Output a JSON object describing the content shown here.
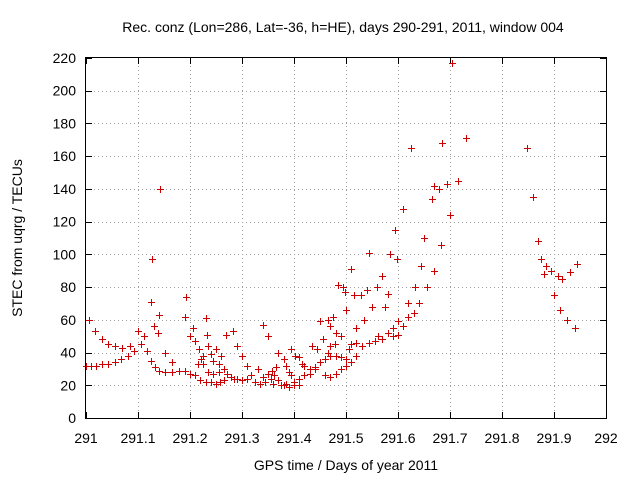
{
  "chart_data": {
    "type": "scatter",
    "title": "Rec. conz (Lon=286, Lat=-36, h=HE), days 290-291, 2011, window 004",
    "xlabel": "GPS time / Days of year 2011",
    "ylabel": "STEC from uqrg / TECUs",
    "xlim": [
      291,
      292
    ],
    "ylim": [
      0,
      220
    ],
    "x_ticks": [
      "291",
      "291.1",
      "291.2",
      "291.3",
      "291.4",
      "291.5",
      "291.6",
      "291.7",
      "291.8",
      "291.9",
      "292"
    ],
    "y_ticks": [
      "0",
      "20",
      "40",
      "60",
      "80",
      "100",
      "120",
      "140",
      "160",
      "180",
      "200",
      "220"
    ],
    "grid": true,
    "marker": "+",
    "color": "#cc0000",
    "points": [
      [
        291.0,
        32
      ],
      [
        291.01,
        32
      ],
      [
        291.02,
        32
      ],
      [
        291.03,
        33
      ],
      [
        291.042,
        33
      ],
      [
        291.055,
        34
      ],
      [
        291.068,
        36
      ],
      [
        291.08,
        38
      ],
      [
        291.093,
        41
      ],
      [
        291.105,
        45
      ],
      [
        291.005,
        60
      ],
      [
        291.018,
        53
      ],
      [
        291.03,
        48
      ],
      [
        291.043,
        45
      ],
      [
        291.055,
        44
      ],
      [
        291.07,
        43
      ],
      [
        291.085,
        44
      ],
      [
        291.1,
        53
      ],
      [
        291.112,
        50
      ],
      [
        291.118,
        41
      ],
      [
        291.125,
        35
      ],
      [
        291.133,
        31
      ],
      [
        291.14,
        29
      ],
      [
        291.152,
        28
      ],
      [
        291.165,
        28
      ],
      [
        291.178,
        29
      ],
      [
        291.19,
        29
      ],
      [
        291.2,
        27
      ],
      [
        291.125,
        71
      ],
      [
        291.127,
        97
      ],
      [
        291.13,
        56
      ],
      [
        291.138,
        52
      ],
      [
        291.14,
        63
      ],
      [
        291.143,
        140
      ],
      [
        291.152,
        40
      ],
      [
        291.165,
        34
      ],
      [
        291.19,
        62
      ],
      [
        291.193,
        74
      ],
      [
        291.2,
        50
      ],
      [
        291.205,
        55
      ],
      [
        291.21,
        47
      ],
      [
        291.218,
        42
      ],
      [
        291.222,
        36
      ],
      [
        291.225,
        33
      ],
      [
        291.23,
        61
      ],
      [
        291.232,
        51
      ],
      [
        291.21,
        26
      ],
      [
        291.22,
        23
      ],
      [
        291.23,
        22
      ],
      [
        291.24,
        22
      ],
      [
        291.25,
        21
      ],
      [
        291.258,
        22
      ],
      [
        291.265,
        23
      ],
      [
        291.215,
        33
      ],
      [
        291.225,
        38
      ],
      [
        291.235,
        44
      ],
      [
        291.24,
        39
      ],
      [
        291.245,
        35
      ],
      [
        291.25,
        42
      ],
      [
        291.255,
        33
      ],
      [
        291.26,
        38
      ],
      [
        291.235,
        28
      ],
      [
        291.245,
        27
      ],
      [
        291.255,
        28
      ],
      [
        291.265,
        30
      ],
      [
        291.272,
        27
      ],
      [
        291.278,
        25
      ],
      [
        291.285,
        24
      ],
      [
        291.27,
        51
      ],
      [
        291.283,
        53
      ],
      [
        291.29,
        44
      ],
      [
        291.3,
        38
      ],
      [
        291.31,
        32
      ],
      [
        291.29,
        24
      ],
      [
        291.3,
        23
      ],
      [
        291.31,
        24
      ],
      [
        291.318,
        26
      ],
      [
        291.33,
        30
      ],
      [
        291.34,
        57
      ],
      [
        291.35,
        50
      ],
      [
        291.325,
        22
      ],
      [
        291.335,
        21
      ],
      [
        291.345,
        22
      ],
      [
        291.355,
        24
      ],
      [
        291.36,
        21
      ],
      [
        291.34,
        25
      ],
      [
        291.35,
        27
      ],
      [
        291.358,
        29
      ],
      [
        291.365,
        31
      ],
      [
        291.362,
        26
      ],
      [
        291.37,
        23
      ],
      [
        291.375,
        20
      ],
      [
        291.38,
        20
      ],
      [
        291.385,
        21
      ],
      [
        291.37,
        40
      ],
      [
        291.38,
        36
      ],
      [
        291.385,
        32
      ],
      [
        291.39,
        28
      ],
      [
        291.395,
        26
      ],
      [
        291.4,
        22
      ],
      [
        291.39,
        19
      ],
      [
        291.4,
        20
      ],
      [
        291.41,
        20
      ],
      [
        291.395,
        42
      ],
      [
        291.402,
        38
      ],
      [
        291.41,
        37
      ],
      [
        291.415,
        33
      ],
      [
        291.42,
        32
      ],
      [
        291.43,
        30
      ],
      [
        291.44,
        31
      ],
      [
        291.41,
        24
      ],
      [
        291.42,
        26
      ],
      [
        291.43,
        27
      ],
      [
        291.44,
        30
      ],
      [
        291.45,
        34
      ],
      [
        291.46,
        36
      ],
      [
        291.47,
        38
      ],
      [
        291.435,
        44
      ],
      [
        291.445,
        42
      ],
      [
        291.45,
        59
      ],
      [
        291.455,
        48
      ],
      [
        291.465,
        40
      ],
      [
        291.47,
        44
      ],
      [
        291.478,
        45
      ],
      [
        291.465,
        60
      ],
      [
        291.47,
        56
      ],
      [
        291.475,
        62
      ],
      [
        291.48,
        52
      ],
      [
        291.485,
        81
      ],
      [
        291.49,
        50
      ],
      [
        291.495,
        80
      ],
      [
        291.498,
        77
      ],
      [
        291.5,
        66
      ],
      [
        291.46,
        26
      ],
      [
        291.47,
        25
      ],
      [
        291.48,
        27
      ],
      [
        291.49,
        30
      ],
      [
        291.5,
        32
      ],
      [
        291.51,
        34
      ],
      [
        291.52,
        38
      ],
      [
        291.48,
        38
      ],
      [
        291.49,
        37
      ],
      [
        291.5,
        36
      ],
      [
        291.505,
        42
      ],
      [
        291.51,
        45
      ],
      [
        291.52,
        46
      ],
      [
        291.53,
        44
      ],
      [
        291.51,
        91
      ],
      [
        291.515,
        75
      ],
      [
        291.52,
        55
      ],
      [
        291.528,
        75
      ],
      [
        291.535,
        60
      ],
      [
        291.54,
        78
      ],
      [
        291.545,
        101
      ],
      [
        291.55,
        68
      ],
      [
        291.545,
        46
      ],
      [
        291.555,
        47
      ],
      [
        291.562,
        50
      ],
      [
        291.57,
        48
      ],
      [
        291.58,
        52
      ],
      [
        291.59,
        55
      ],
      [
        291.6,
        59
      ],
      [
        291.56,
        80
      ],
      [
        291.57,
        87
      ],
      [
        291.575,
        68
      ],
      [
        291.58,
        76
      ],
      [
        291.585,
        100
      ],
      [
        291.595,
        115
      ],
      [
        291.598,
        97
      ],
      [
        291.59,
        50
      ],
      [
        291.6,
        51
      ],
      [
        291.61,
        56
      ],
      [
        291.62,
        62
      ],
      [
        291.63,
        64
      ],
      [
        291.64,
        70
      ],
      [
        291.61,
        128
      ],
      [
        291.62,
        70
      ],
      [
        291.625,
        165
      ],
      [
        291.632,
        80
      ],
      [
        291.645,
        93
      ],
      [
        291.65,
        110
      ],
      [
        291.655,
        80
      ],
      [
        291.67,
        90
      ],
      [
        291.665,
        134
      ],
      [
        291.67,
        142
      ],
      [
        291.678,
        140
      ],
      [
        291.683,
        106
      ],
      [
        291.685,
        168
      ],
      [
        291.695,
        143
      ],
      [
        291.7,
        124
      ],
      [
        291.703,
        217
      ],
      [
        291.715,
        145
      ],
      [
        291.73,
        171
      ],
      [
        291.848,
        165
      ],
      [
        291.86,
        135
      ],
      [
        291.87,
        108
      ],
      [
        291.875,
        97
      ],
      [
        291.88,
        88
      ],
      [
        291.885,
        93
      ],
      [
        291.895,
        90
      ],
      [
        291.9,
        75
      ],
      [
        291.908,
        87
      ],
      [
        291.912,
        66
      ],
      [
        291.915,
        85
      ],
      [
        291.925,
        60
      ],
      [
        291.93,
        89
      ],
      [
        291.94,
        55
      ],
      [
        291.945,
        94
      ]
    ]
  }
}
